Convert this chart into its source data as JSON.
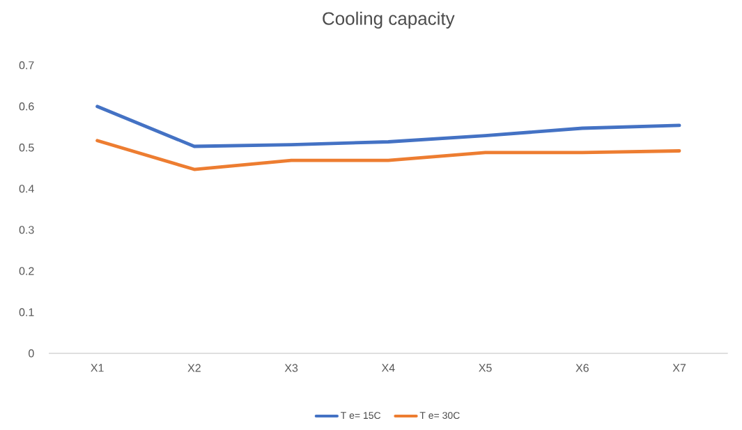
{
  "chart_data": {
    "type": "line",
    "title": "Cooling capacity",
    "categories": [
      "X1",
      "X2",
      "X3",
      "X4",
      "X5",
      "X6",
      "X7"
    ],
    "series": [
      {
        "name": "T e= 15C",
        "color": "#4472c4",
        "values": [
          0.6,
          0.503,
          0.507,
          0.514,
          0.529,
          0.547,
          0.554
        ]
      },
      {
        "name": "T e= 30C",
        "color": "#ed7d31",
        "values": [
          0.517,
          0.447,
          0.469,
          0.469,
          0.488,
          0.488,
          0.492
        ]
      }
    ],
    "ylim": [
      0,
      0.7
    ],
    "yticks": [
      0,
      0.1,
      0.2,
      0.3,
      0.4,
      0.5,
      0.6,
      0.7
    ],
    "grid": false,
    "legend": "bottom",
    "marker": "none",
    "line_style": "solid"
  }
}
